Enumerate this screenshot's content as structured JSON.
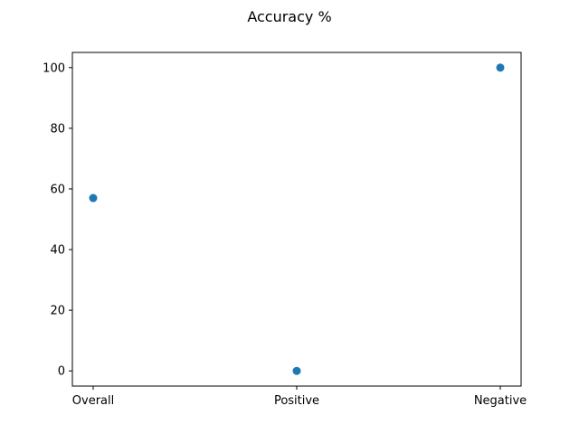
{
  "chart_data": {
    "type": "scatter",
    "title": "Accuracy %",
    "xlabel": "",
    "ylabel": "",
    "categories": [
      "Overall",
      "Positive",
      "Negative"
    ],
    "values": [
      57,
      0,
      100
    ],
    "ylim": [
      -5,
      105
    ],
    "yticks": [
      0,
      20,
      40,
      60,
      80,
      100
    ],
    "grid": false,
    "color": "#1f77b4"
  }
}
